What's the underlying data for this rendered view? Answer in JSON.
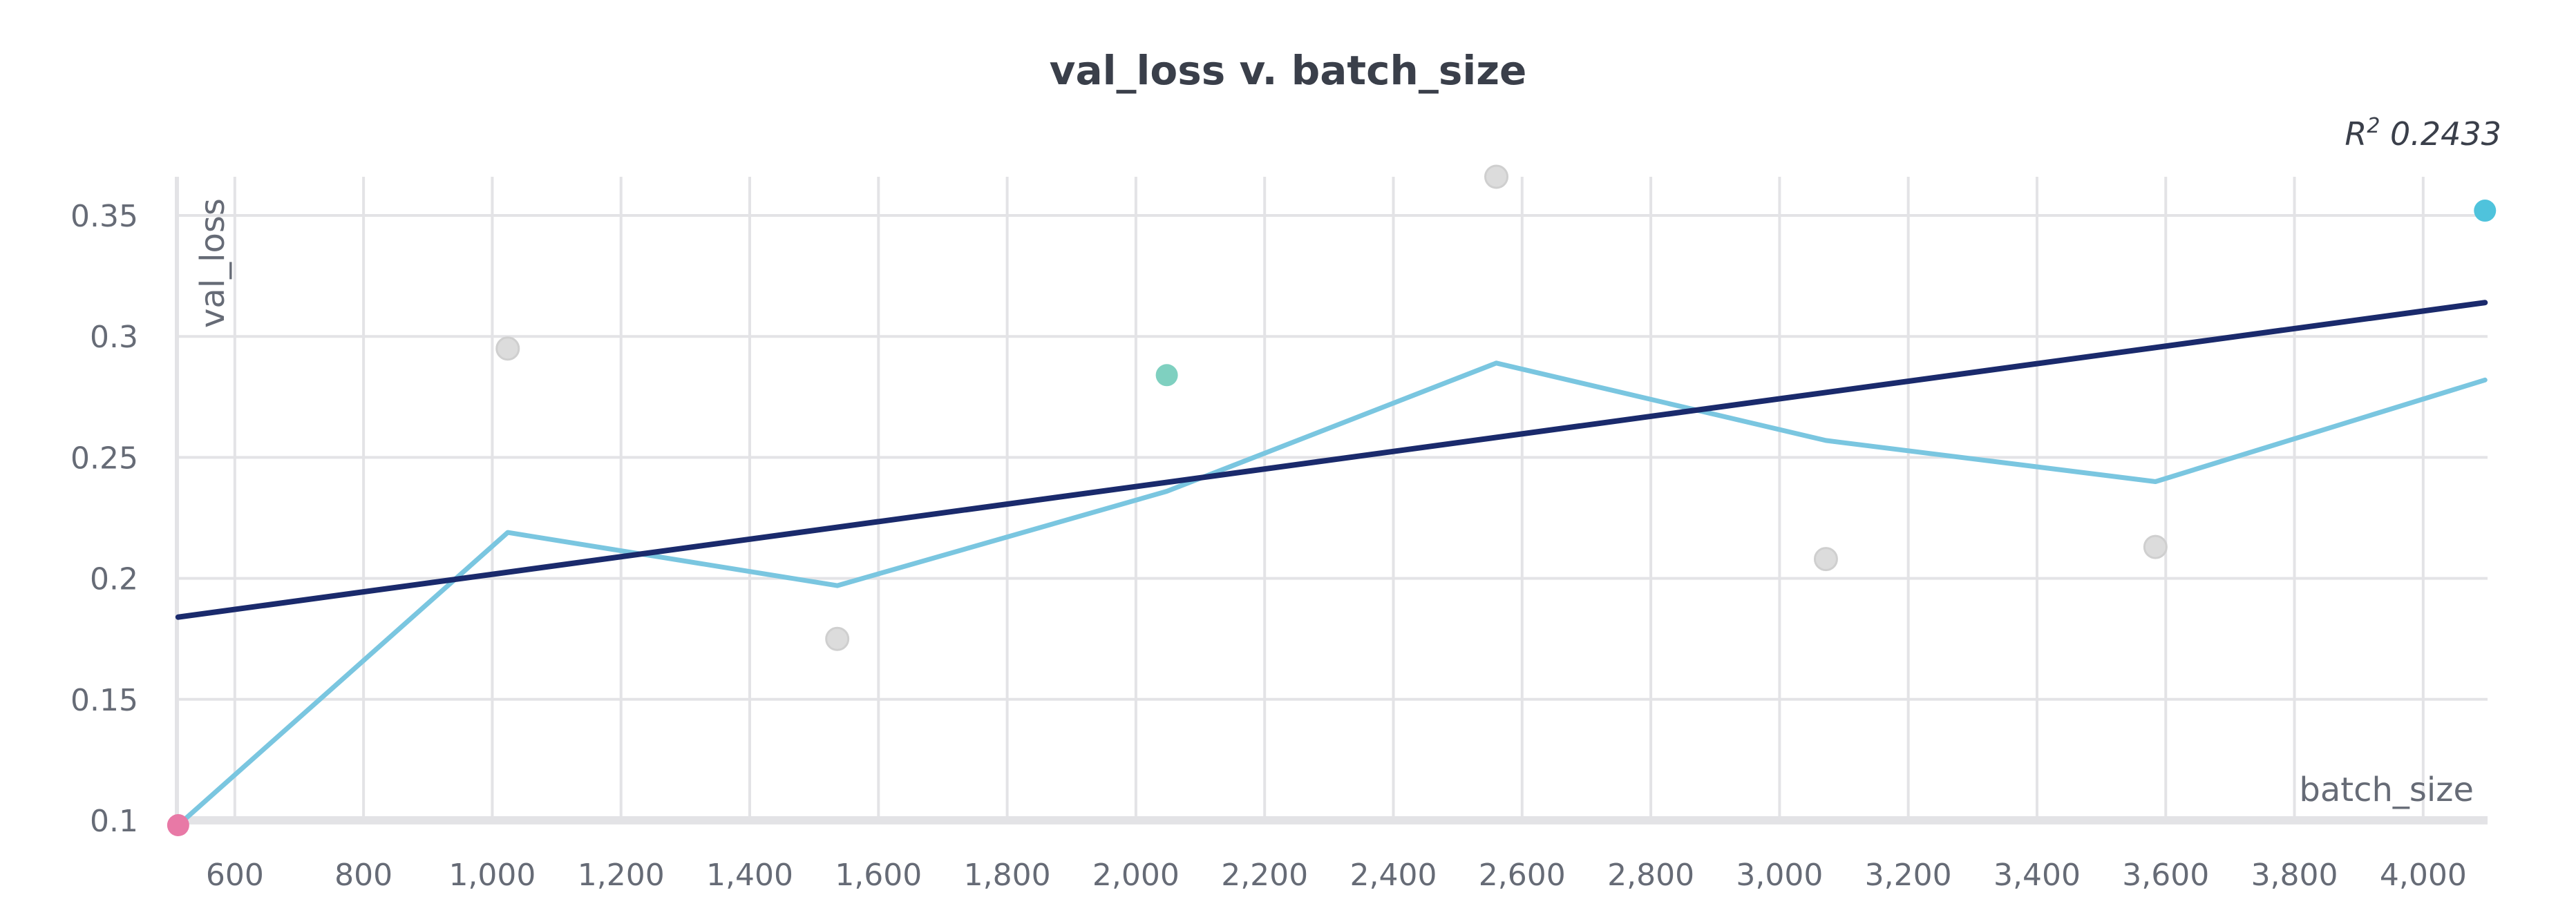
{
  "chart_data": {
    "type": "scatter",
    "title": "val_loss v. batch_size",
    "xlabel": "batch_size",
    "ylabel": "val_loss",
    "xlim": [
      510,
      4100
    ],
    "ylim": [
      0.1,
      0.366
    ],
    "x_ticks": [
      600,
      800,
      1000,
      1200,
      1400,
      1600,
      1800,
      2000,
      2200,
      2400,
      2600,
      2800,
      3000,
      3200,
      3400,
      3600,
      3800,
      4000
    ],
    "x_tick_labels": [
      "600",
      "800",
      "1,000",
      "1,200",
      "1,400",
      "1,600",
      "1,800",
      "2,000",
      "2,200",
      "2,400",
      "2,600",
      "2,800",
      "3,000",
      "3,200",
      "3,400",
      "3,600",
      "3,800",
      "4,000"
    ],
    "y_ticks": [
      0.1,
      0.15,
      0.2,
      0.25,
      0.3,
      0.35
    ],
    "y_tick_labels": [
      "0.1",
      "0.15",
      "0.2",
      "0.25",
      "0.3",
      "0.35"
    ],
    "grid": true,
    "r_squared_label": "0.2433",
    "points": [
      {
        "x": 512,
        "y": 0.098,
        "color": "#e879a6"
      },
      {
        "x": 1024,
        "y": 0.295,
        "color": "#dcdcdc"
      },
      {
        "x": 1536,
        "y": 0.175,
        "color": "#dcdcdc"
      },
      {
        "x": 2048,
        "y": 0.284,
        "color": "#7fd0c0"
      },
      {
        "x": 2560,
        "y": 0.366,
        "color": "#dcdcdc"
      },
      {
        "x": 3072,
        "y": 0.208,
        "color": "#dcdcdc"
      },
      {
        "x": 3584,
        "y": 0.213,
        "color": "#dcdcdc"
      },
      {
        "x": 4096,
        "y": 0.352,
        "color": "#4fc3dc"
      }
    ],
    "series": [
      {
        "color": "#7ac6e0",
        "x": [
          512,
          1024,
          1536,
          2048,
          2560,
          3072,
          3584,
          4096
        ],
        "y": [
          0.098,
          0.219,
          0.197,
          0.236,
          0.289,
          0.257,
          0.24,
          0.282
        ]
      },
      {
        "color": "#1a2a6c",
        "x": [
          512,
          4096
        ],
        "y": [
          0.184,
          0.314
        ]
      }
    ]
  }
}
